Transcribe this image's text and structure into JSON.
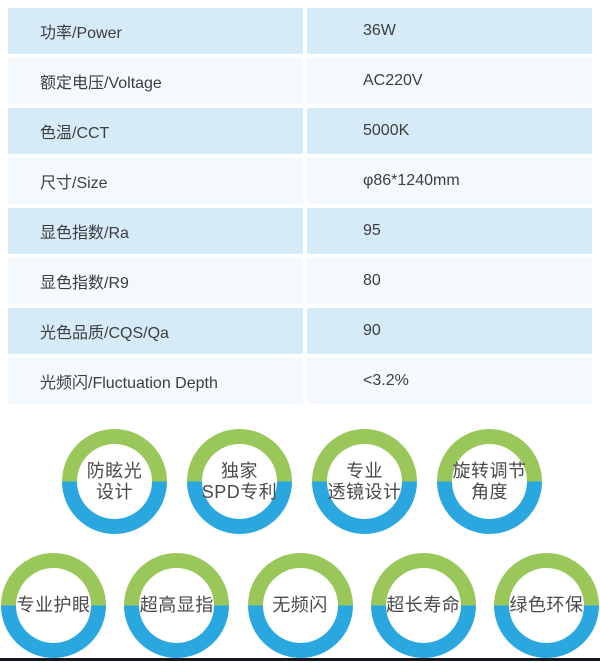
{
  "table": {
    "rows": [
      {
        "label": "功率/Power",
        "value": "36W"
      },
      {
        "label": "额定电压/Voltage",
        "value": "AC220V"
      },
      {
        "label": "色温/CCT",
        "value": "5000K"
      },
      {
        "label": "尺寸/Size",
        "value": "φ86*1240mm"
      },
      {
        "label": "显色指数/Ra",
        "value": "95"
      },
      {
        "label": "显色指数/R9",
        "value": "80"
      },
      {
        "label": "光色品质/CQS/Qa",
        "value": "90"
      },
      {
        "label": "光频闪/Fluctuation Depth",
        "value": "<3.2%"
      }
    ]
  },
  "badges": {
    "row1": [
      {
        "line1": "防眩光",
        "line2": "设计"
      },
      {
        "line1": "独家",
        "line2": "SPD专利"
      },
      {
        "line1": "专业",
        "line2": "透镜设计"
      },
      {
        "line1": "旋转调节",
        "line2": "角度"
      }
    ],
    "row2": [
      {
        "line1": "专业护眼"
      },
      {
        "line1": "超高显指"
      },
      {
        "line1": "无频闪"
      },
      {
        "line1": "超长寿命"
      },
      {
        "line1": "绿色环保"
      }
    ]
  },
  "colors": {
    "table_row_blue": "#d6ebf8",
    "table_row_light": "#f3f9fd",
    "badge_ring_green": "#99c75a",
    "badge_ring_blue": "#2ba7df",
    "text_dark": "#3d3d3d",
    "bottom_bar": "#16161f"
  }
}
